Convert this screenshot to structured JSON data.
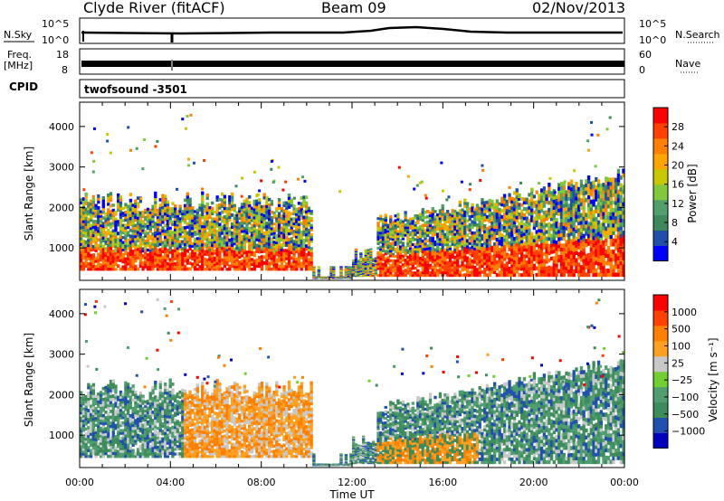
{
  "header": {
    "station": "Clyde River (fitACF)",
    "beam": "Beam 09",
    "date": "02/Nov/2013"
  },
  "strip_labels": {
    "nsky": "N.Sky",
    "nsky_ticks": [
      "10^5",
      "10^0"
    ],
    "nsearch": "N.Search",
    "freq": "Freq.",
    "freq_unit": "[MHz]",
    "freq_ticks": [
      "18",
      "8"
    ],
    "nave": "Nave",
    "nave_ticks": [
      "60",
      "0"
    ],
    "nsearch_ticks": [
      "10^5",
      "10^0"
    ],
    "cpid": "CPID",
    "cpid_value": "twofsound -3501"
  },
  "colors": {
    "power_scale": [
      "#0000ff",
      "#1f4fa8",
      "#3c8a5c",
      "#4fa06a",
      "#7fc93a",
      "#c8c800",
      "#ffa500",
      "#ff7f00",
      "#ff4000",
      "#ff0000"
    ],
    "velocity_scale": [
      "#0000c0",
      "#2050b0",
      "#3d8c5a",
      "#4f9e70",
      "#70d030",
      "#c8c8c8",
      "#ffa020",
      "#ff8000",
      "#ff4000",
      "#ff0000"
    ]
  },
  "chart_data": [
    {
      "type": "heatmap",
      "name": "power",
      "ylabel": "Slant Range [km]",
      "xlabel": "",
      "x_ticks": [
        "00:00",
        "04:00",
        "08:00",
        "12:00",
        "16:00",
        "20:00",
        "00:00"
      ],
      "y_ticks": [
        1000,
        2000,
        3000,
        4000
      ],
      "ylim": [
        200,
        4600
      ],
      "colorbar": {
        "label": "Power [dB]",
        "ticks": [
          "28",
          "24",
          "20",
          "16",
          "12",
          "8",
          "4"
        ],
        "range": [
          0,
          30
        ]
      }
    },
    {
      "type": "heatmap",
      "name": "velocity",
      "ylabel": "Slant Range [km]",
      "xlabel": "Time UT",
      "x_ticks": [
        "00:00",
        "04:00",
        "08:00",
        "12:00",
        "16:00",
        "20:00",
        "00:00"
      ],
      "y_ticks": [
        1000,
        2000,
        3000,
        4000
      ],
      "ylim": [
        200,
        4600
      ],
      "colorbar": {
        "label": "Velocity [m s⁻¹]",
        "ticks": [
          "1000",
          "500",
          "100",
          "25",
          "−25",
          "−100",
          "−500",
          "−1000"
        ],
        "range": [
          -1000,
          1000
        ]
      }
    }
  ]
}
